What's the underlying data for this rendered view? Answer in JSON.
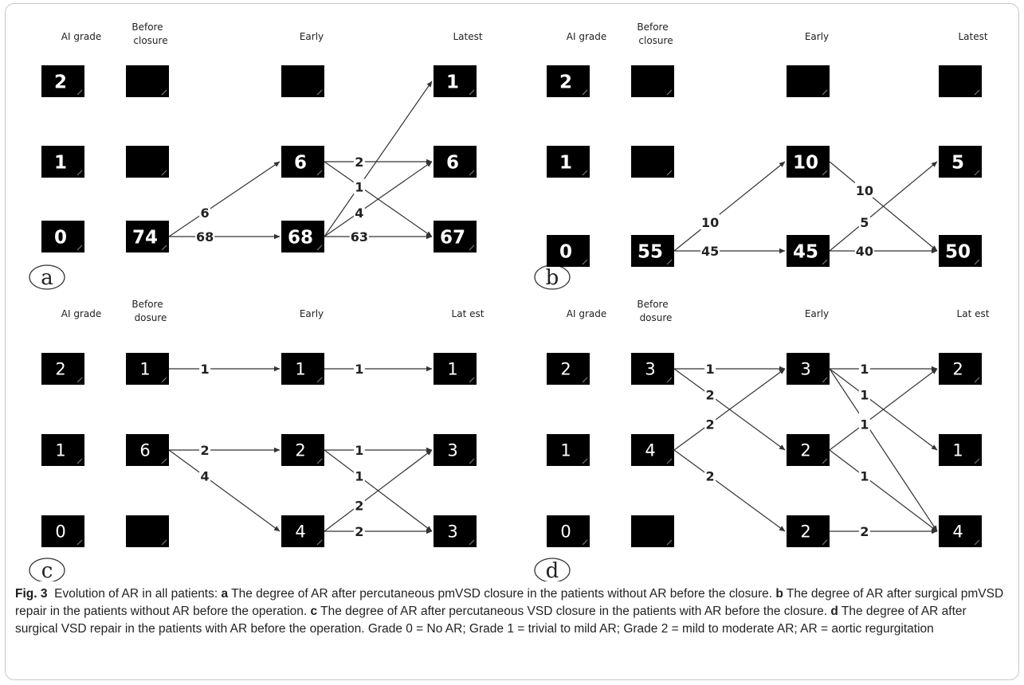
{
  "headers": {
    "ai_grade": "AI grade",
    "before_line1": "Before",
    "before_line2_a": "closure",
    "before_line2_cd": "dosure",
    "early": "Early",
    "latest_ab": "Latest",
    "latest_cd": "Lat est"
  },
  "colors": {
    "box": "#000000",
    "box_text": "#ffffff",
    "line": "#333333",
    "label": "#222222"
  },
  "panels": [
    {
      "id": "a",
      "letter": "a",
      "ai_grades": [
        "2",
        "1",
        "0"
      ],
      "before": [
        "",
        "",
        "74"
      ],
      "early": [
        "",
        "6",
        "68"
      ],
      "latest": [
        "1",
        "6",
        "67"
      ],
      "flows": [
        {
          "from": "before-0",
          "to": "early-1",
          "label": "6"
        },
        {
          "from": "before-0",
          "to": "early-0",
          "label": "68"
        },
        {
          "from": "early-1",
          "to": "latest-1",
          "label": "2"
        },
        {
          "from": "early-1",
          "to": "latest-0",
          "label": "4"
        },
        {
          "from": "early-0",
          "to": "latest-2",
          "label": "1"
        },
        {
          "from": "early-0",
          "to": "latest-1",
          "label": "4"
        },
        {
          "from": "early-0",
          "to": "latest-0",
          "label": "63"
        }
      ]
    },
    {
      "id": "b",
      "letter": "b",
      "ai_grades": [
        "2",
        "1",
        "0"
      ],
      "before": [
        "",
        "",
        "55"
      ],
      "early": [
        "",
        "10",
        "45"
      ],
      "latest": [
        "",
        "5",
        "50"
      ],
      "flows": [
        {
          "from": "before-0",
          "to": "early-1",
          "label": "10"
        },
        {
          "from": "before-0",
          "to": "early-0",
          "label": "45"
        },
        {
          "from": "early-1",
          "to": "latest-0",
          "label": "10"
        },
        {
          "from": "early-0",
          "to": "latest-1",
          "label": "5"
        },
        {
          "from": "early-0",
          "to": "latest-0",
          "label": "40"
        }
      ]
    },
    {
      "id": "c",
      "letter": "c",
      "ai_grades": [
        "2",
        "1",
        "0"
      ],
      "before": [
        "1",
        "6",
        ""
      ],
      "early": [
        "1",
        "2",
        "4"
      ],
      "latest": [
        "1",
        "3",
        "3"
      ],
      "flows": [
        {
          "from": "before-2",
          "to": "early-2",
          "label": "1"
        },
        {
          "from": "early-2",
          "to": "latest-2",
          "label": "1"
        },
        {
          "from": "before-1",
          "to": "early-1",
          "label": "2"
        },
        {
          "from": "before-1",
          "to": "early-0",
          "label": "4"
        },
        {
          "from": "early-1",
          "to": "latest-1",
          "label": "1"
        },
        {
          "from": "early-1",
          "to": "latest-0",
          "label": "1"
        },
        {
          "from": "early-0",
          "to": "latest-1",
          "label": "2"
        },
        {
          "from": "early-0",
          "to": "latest-0",
          "label": "2"
        }
      ]
    },
    {
      "id": "d",
      "letter": "d",
      "ai_grades": [
        "2",
        "1",
        "0"
      ],
      "before": [
        "3",
        "4",
        ""
      ],
      "early": [
        "3",
        "2",
        "2"
      ],
      "latest": [
        "2",
        "1",
        "4"
      ],
      "flows": [
        {
          "from": "before-2",
          "to": "early-2",
          "label": "1"
        },
        {
          "from": "before-2",
          "to": "early-1",
          "label": "2"
        },
        {
          "from": "before-1",
          "to": "early-2",
          "label": "2"
        },
        {
          "from": "before-1",
          "to": "early-0",
          "label": "2"
        },
        {
          "from": "early-2",
          "to": "latest-2",
          "label": "1"
        },
        {
          "from": "early-2",
          "to": "latest-1",
          "label": "1"
        },
        {
          "from": "early-2",
          "to": "latest-0",
          "label": "1"
        },
        {
          "from": "early-1",
          "to": "latest-2",
          "label": "1"
        },
        {
          "from": "early-1",
          "to": "latest-0",
          "label": "1"
        },
        {
          "from": "early-0",
          "to": "latest-0",
          "label": "2"
        }
      ]
    }
  ],
  "caption": {
    "label": "Fig. 3",
    "intro": "Evolution of AR in all patients:",
    "a_letter": "a",
    "a_text": "The degree of AR after percutaneous pmVSD closure in the patients without AR before the closure.",
    "b_letter": "b",
    "b_text": "The degree of AR after surgical pmVSD repair in the patients without AR before the operation.",
    "c_letter": "c",
    "c_text": "The degree of AR after percutaneous VSD closure in the patients with AR before the closure.",
    "d_letter": "d",
    "d_text": "The degree of AR after surgical VSD repair in the patients with AR before the operation. Grade 0 = No AR; Grade 1 = trivial to mild AR; Grade 2 = mild to moderate AR; AR = aortic regurgitation"
  }
}
